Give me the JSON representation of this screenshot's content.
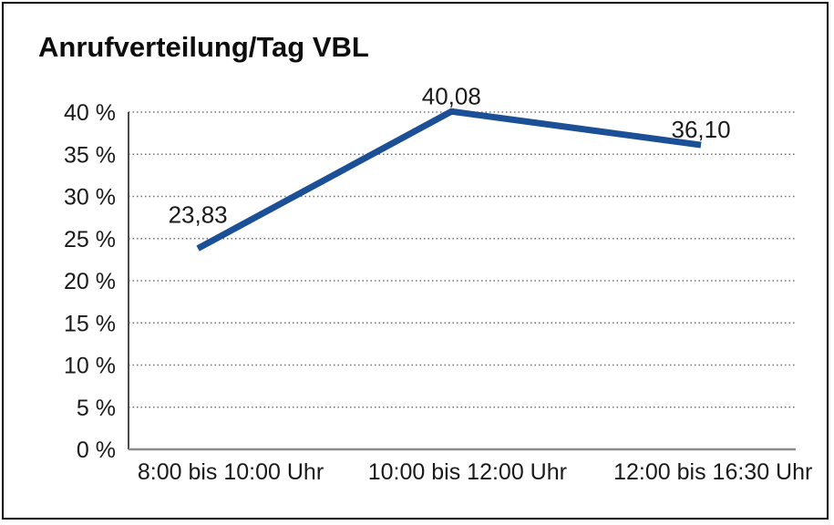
{
  "chart_data": {
    "type": "line",
    "title": "Anrufverteilung/Tag VBL",
    "categories": [
      "8:00 bis 10:00 Uhr",
      "10:00 bis 12:00 Uhr",
      "12:00 bis 16:30 Uhr"
    ],
    "values": [
      23.83,
      40.08,
      36.1
    ],
    "point_labels": [
      "23,83",
      "40,08",
      "36,10"
    ],
    "y_tick_labels": [
      "0 %",
      "5 %",
      "10 %",
      "15 %",
      "20 %",
      "25 %",
      "30 %",
      "35 %",
      "40 %"
    ],
    "ylim": [
      0,
      40
    ],
    "y_step": 5,
    "xlabel": "",
    "ylabel": "",
    "grid": "horizontal dotted",
    "legend": "none",
    "line_color": "#1B4F96",
    "axis_color": "#4a4a4a",
    "gridline_color": "#737373",
    "background_color": "#ffffff",
    "border_color": "#000000"
  }
}
